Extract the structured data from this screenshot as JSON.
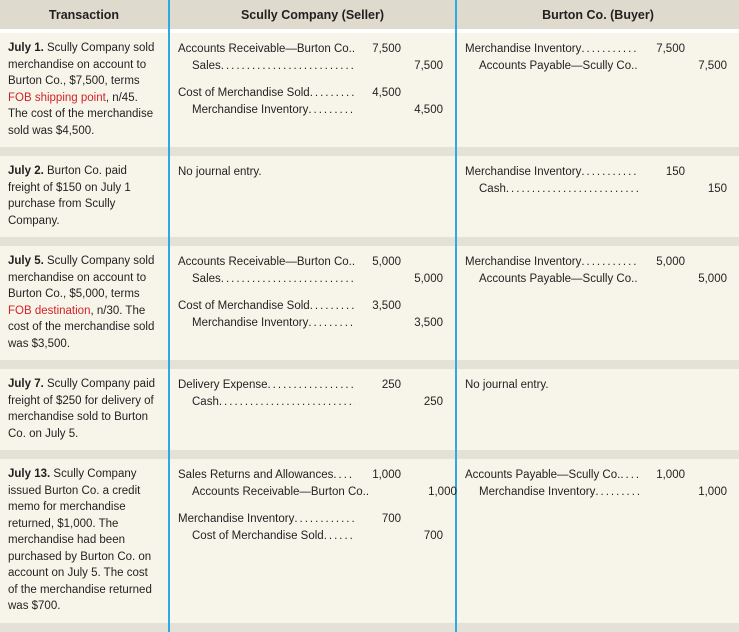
{
  "colors": {
    "accent_line": "#2aabe2",
    "header_bg": "#dedace",
    "cell_bg": "#f7f5e9",
    "separator_bg": "#e4e1d6",
    "red_text": "#d2232a",
    "text": "#231f20"
  },
  "header": {
    "transaction": "Transaction",
    "seller": "Scully Company (Seller)",
    "buyer": "Burton Co. (Buyer)"
  },
  "rows": [
    {
      "transaction": {
        "date": "July 1.",
        "pre": " Scully Company sold merchandise on account to Burton Co., $7,500, terms ",
        "red": "FOB shipping point",
        "post": ", n/45. The cost of the merchandise sold was $4,500."
      },
      "seller": {
        "groups": [
          [
            {
              "account": "Accounts Receivable—Burton Co.",
              "debit": "7,500",
              "credit": ""
            },
            {
              "account": "Sales",
              "debit": "",
              "credit": "7,500"
            }
          ],
          [
            {
              "account": "Cost of Merchandise Sold",
              "debit": "4,500",
              "credit": ""
            },
            {
              "account": "Merchandise Inventory",
              "debit": "",
              "credit": "4,500"
            }
          ]
        ]
      },
      "buyer": {
        "groups": [
          [
            {
              "account": "Merchandise Inventory",
              "debit": "7,500",
              "credit": ""
            },
            {
              "account": "Accounts Payable—Scully Co.",
              "debit": "",
              "credit": "7,500"
            }
          ]
        ]
      }
    },
    {
      "transaction": {
        "date": "July 2.",
        "pre": " Burton Co. paid freight of $150 on July 1 purchase from Scully Company.",
        "red": "",
        "post": ""
      },
      "seller": {
        "note": "No journal entry."
      },
      "buyer": {
        "groups": [
          [
            {
              "account": "Merchandise Inventory",
              "debit": "150",
              "credit": ""
            },
            {
              "account": "Cash",
              "debit": "",
              "credit": "150"
            }
          ]
        ]
      }
    },
    {
      "transaction": {
        "date": "July 5.",
        "pre": " Scully Company sold merchandise on account to Burton Co., $5,000, terms ",
        "red": "FOB destination",
        "post": ", n/30. The cost of the merchandise sold was $3,500."
      },
      "seller": {
        "groups": [
          [
            {
              "account": "Accounts Receivable—Burton Co.",
              "debit": "5,000",
              "credit": ""
            },
            {
              "account": "Sales",
              "debit": "",
              "credit": "5,000"
            }
          ],
          [
            {
              "account": "Cost of Merchandise Sold",
              "debit": "3,500",
              "credit": ""
            },
            {
              "account": "Merchandise Inventory",
              "debit": "",
              "credit": "3,500"
            }
          ]
        ]
      },
      "buyer": {
        "groups": [
          [
            {
              "account": "Merchandise Inventory",
              "debit": "5,000",
              "credit": ""
            },
            {
              "account": "Accounts Payable—Scully Co.",
              "debit": "",
              "credit": "5,000"
            }
          ]
        ]
      }
    },
    {
      "transaction": {
        "date": "July 7.",
        "pre": " Scully Company paid freight of $250 for delivery of merchandise sold to Burton Co. on July 5.",
        "red": "",
        "post": ""
      },
      "seller": {
        "groups": [
          [
            {
              "account": "Delivery Expense",
              "debit": "250",
              "credit": ""
            },
            {
              "account": "Cash",
              "debit": "",
              "credit": "250"
            }
          ]
        ]
      },
      "buyer": {
        "note": "No journal entry."
      }
    },
    {
      "transaction": {
        "date": "July 13.",
        "pre": " Scully Company issued Burton Co. a credit memo for merchandise returned, $1,000. The merchandise had been purchased by Burton Co. on account on July 5. The cost of the merchandise returned was $700.",
        "red": "",
        "post": ""
      },
      "seller": {
        "groups": [
          [
            {
              "account": "Sales Returns and Allowances",
              "debit": "1,000",
              "credit": ""
            },
            {
              "account": "Accounts Receivable—Burton Co.",
              "debit": "",
              "credit": "1,000"
            }
          ],
          [
            {
              "account": "Merchandise Inventory",
              "debit": "700",
              "credit": ""
            },
            {
              "account": "Cost of Merchandise Sold",
              "debit": "",
              "credit": "700"
            }
          ]
        ]
      },
      "buyer": {
        "groups": [
          [
            {
              "account": "Accounts Payable—Scully Co.",
              "debit": "1,000",
              "credit": ""
            },
            {
              "account": "Merchandise Inventory",
              "debit": "",
              "credit": "1,000"
            }
          ]
        ]
      }
    }
  ]
}
